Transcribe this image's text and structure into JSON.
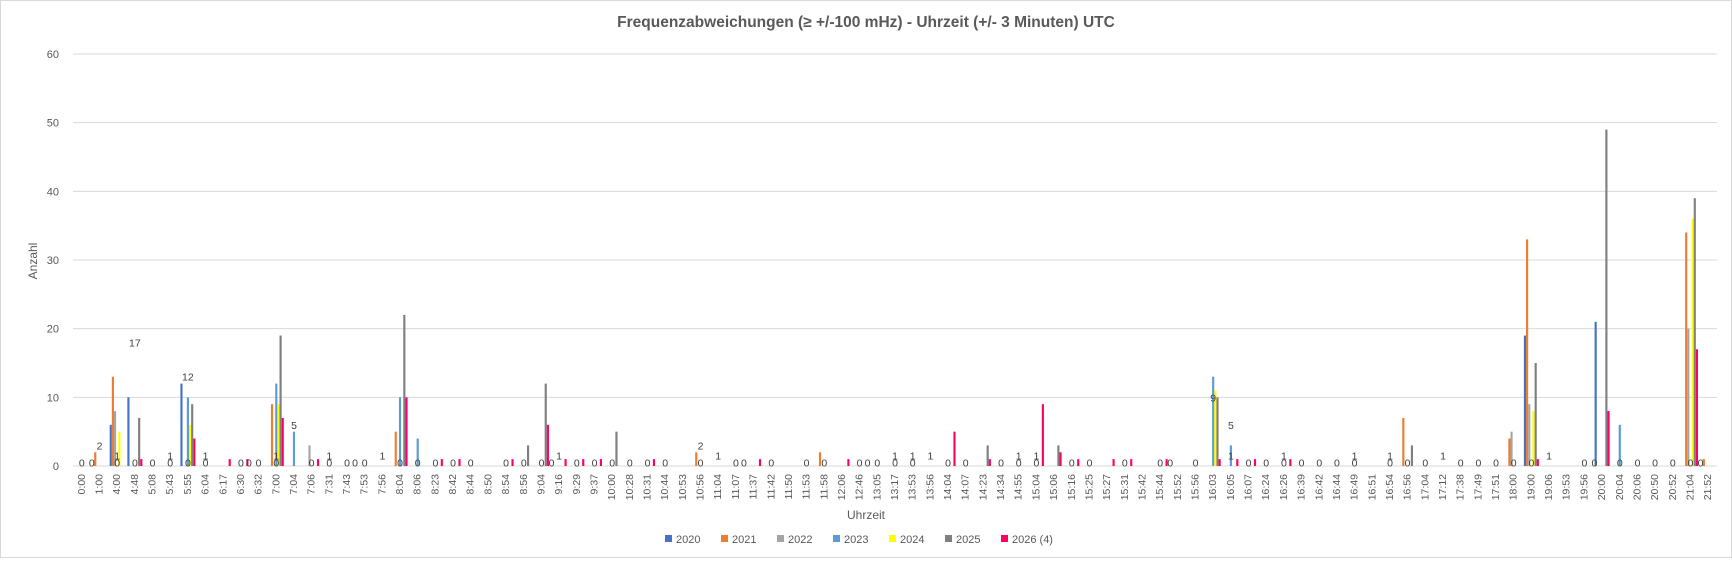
{
  "chart_data": {
    "type": "bar",
    "title": "Frequenzabweichungen (≥ +/-100 mHz) - Uhrzeit (+/- 3  Minuten) UTC",
    "xlabel": "Uhrzeit",
    "ylabel": "Anzahl",
    "ylim": [
      0,
      60
    ],
    "yticks": [
      "0",
      "10",
      "20",
      "30",
      "40",
      "50",
      "60"
    ],
    "grid": true,
    "legend_position": "bottom",
    "colors": [
      "#4472C4",
      "#ED7D31",
      "#A5A5A5",
      "#5B9BD5",
      "#FFFF00",
      "#7F7F7F",
      "#FF0066"
    ],
    "categories": [
      "0:00",
      "1:00",
      "4:00",
      "4:48",
      "5:08",
      "5:43",
      "5:55",
      "6:04",
      "6:17",
      "6:30",
      "6:32",
      "7:00",
      "7:04",
      "7:06",
      "7:31",
      "7:43",
      "7:53",
      "7:56",
      "8:04",
      "8:06",
      "8:23",
      "8:42",
      "8:44",
      "8:50",
      "8:54",
      "8:56",
      "9:04",
      "9:16",
      "9:29",
      "9:37",
      "10:00",
      "10:28",
      "10:31",
      "10:44",
      "10:53",
      "10:56",
      "11:04",
      "11:07",
      "11:37",
      "11:42",
      "11:50",
      "11:53",
      "11:58",
      "12:06",
      "12:46",
      "13:05",
      "13:17",
      "13:53",
      "13:56",
      "14:04",
      "14:07",
      "14:23",
      "14:34",
      "14:55",
      "15:04",
      "15:06",
      "15:16",
      "15:25",
      "15:27",
      "15:31",
      "15:42",
      "15:44",
      "15:52",
      "15:56",
      "16:03",
      "16:05",
      "16:07",
      "16:24",
      "16:26",
      "16:39",
      "16:42",
      "16:44",
      "16:49",
      "16:51",
      "16:54",
      "16:56",
      "17:04",
      "17:12",
      "17:38",
      "17:49",
      "17:51",
      "18:00",
      "19:00",
      "19:06",
      "19:53",
      "19:56",
      "20:00",
      "20:04",
      "20:06",
      "20:50",
      "20:52",
      "21:04",
      "21:52"
    ],
    "series": [
      {
        "name": "2020",
        "values": [
          0,
          0,
          6,
          10,
          0,
          0,
          12,
          0,
          0,
          0,
          0,
          0,
          0,
          0,
          0,
          0,
          0,
          0,
          0,
          0,
          0,
          0,
          0,
          0,
          0,
          0,
          0,
          0,
          0,
          0,
          0,
          0,
          0,
          0,
          0,
          0,
          0,
          0,
          0,
          0,
          0,
          0,
          0,
          0,
          0,
          0,
          0,
          0,
          0,
          0,
          0,
          0,
          0,
          0,
          0,
          0,
          0,
          0,
          0,
          0,
          0,
          0,
          0,
          0,
          0,
          0,
          0,
          0,
          0,
          0,
          0,
          0,
          0,
          0,
          0,
          0,
          0,
          0,
          0,
          0,
          0,
          0,
          19,
          0,
          0,
          0,
          21,
          0,
          0,
          0,
          0,
          0,
          0
        ]
      },
      {
        "name": "2021",
        "values": [
          0,
          2,
          13,
          0,
          0,
          0,
          0,
          0,
          0,
          0,
          0,
          9,
          0,
          0,
          0,
          0,
          0,
          0,
          5,
          0,
          0,
          0,
          0,
          0,
          0,
          0,
          0,
          0,
          0,
          0,
          0,
          0,
          0,
          0,
          0,
          2,
          0,
          0,
          0,
          0,
          0,
          0,
          2,
          0,
          0,
          0,
          0,
          0,
          0,
          0,
          0,
          0,
          0,
          0,
          0,
          0,
          0,
          0,
          0,
          0,
          0,
          0,
          0,
          0,
          0,
          0,
          0,
          0,
          0,
          0,
          0,
          0,
          0,
          0,
          0,
          7,
          0,
          0,
          0,
          0,
          0,
          4,
          33,
          0,
          0,
          0,
          0,
          0,
          0,
          0,
          0,
          34,
          1
        ]
      },
      {
        "name": "2022",
        "values": [
          0,
          0,
          8,
          0,
          0,
          0,
          0,
          0,
          0,
          0,
          0,
          0,
          0,
          3,
          0,
          0,
          0,
          0,
          0,
          0,
          0,
          0,
          0,
          0,
          0,
          0,
          0,
          0,
          0,
          0,
          0,
          0,
          0,
          0,
          0,
          0,
          0,
          0,
          0,
          0,
          0,
          0,
          0,
          0,
          0,
          0,
          0,
          0,
          0,
          0,
          0,
          0,
          0,
          0,
          0,
          0,
          0,
          0,
          0,
          0,
          0,
          0,
          0,
          0,
          0,
          0,
          0,
          0,
          0,
          0,
          0,
          0,
          0,
          0,
          0,
          0,
          0,
          0,
          0,
          0,
          0,
          5,
          9,
          0,
          0,
          0,
          0,
          0,
          0,
          0,
          0,
          20,
          0
        ]
      },
      {
        "name": "2023",
        "values": [
          0,
          0,
          0,
          0,
          0,
          0,
          10,
          0,
          0,
          0,
          0,
          12,
          5,
          0,
          0,
          0,
          0,
          0,
          10,
          4,
          0,
          0,
          0,
          0,
          0,
          0,
          0,
          0,
          0,
          0,
          0,
          0,
          0,
          0,
          0,
          0,
          0,
          0,
          0,
          0,
          0,
          0,
          0,
          0,
          0,
          0,
          0,
          0,
          0,
          0,
          0,
          0,
          0,
          0,
          0,
          0,
          0,
          0,
          0,
          0,
          0,
          0,
          0,
          0,
          13,
          3,
          0,
          0,
          0,
          0,
          0,
          0,
          0,
          0,
          0,
          0,
          0,
          0,
          0,
          0,
          0,
          0,
          0,
          0,
          0,
          0,
          0,
          6,
          0,
          0,
          0,
          0,
          0
        ]
      },
      {
        "name": "2024",
        "values": [
          0,
          0,
          5,
          0,
          0,
          0,
          6,
          0,
          0,
          0,
          0,
          9,
          0,
          0,
          0,
          0,
          0,
          0,
          0,
          0,
          0,
          0,
          0,
          0,
          0,
          0,
          0,
          0,
          0,
          0,
          0,
          0,
          0,
          0,
          0,
          0,
          0,
          0,
          0,
          0,
          0,
          0,
          0,
          0,
          0,
          0,
          0,
          0,
          0,
          0,
          0,
          0,
          0,
          0,
          0,
          0,
          0,
          0,
          0,
          0,
          0,
          0,
          0,
          0,
          11,
          0,
          0,
          0,
          0,
          0,
          0,
          0,
          0,
          0,
          0,
          0,
          0,
          0,
          0,
          0,
          0,
          0,
          8,
          0,
          0,
          0,
          0,
          0,
          0,
          0,
          0,
          36,
          0
        ]
      },
      {
        "name": "2025",
        "values": [
          0,
          0,
          0,
          7,
          0,
          0,
          9,
          0,
          0,
          0,
          0,
          19,
          0,
          0,
          0,
          0,
          0,
          0,
          22,
          0,
          0,
          0,
          0,
          0,
          0,
          3,
          12,
          0,
          0,
          0,
          5,
          0,
          0,
          0,
          0,
          0,
          0,
          0,
          0,
          0,
          0,
          0,
          0,
          0,
          0,
          0,
          0,
          0,
          0,
          0,
          0,
          3,
          0,
          0,
          0,
          3,
          0,
          0,
          0,
          0,
          0,
          0,
          0,
          0,
          10,
          0,
          0,
          0,
          0,
          0,
          0,
          0,
          0,
          0,
          0,
          3,
          0,
          0,
          0,
          0,
          0,
          0,
          15,
          0,
          0,
          0,
          49,
          0,
          0,
          0,
          0,
          39,
          0
        ]
      },
      {
        "name": "2026 (4)",
        "values": [
          0,
          0,
          0,
          1,
          0,
          0,
          4,
          0,
          1,
          1,
          0,
          7,
          0,
          1,
          0,
          0,
          0,
          0,
          10,
          0,
          1,
          1,
          0,
          0,
          1,
          0,
          6,
          1,
          1,
          1,
          0,
          0,
          1,
          0,
          0,
          0,
          0,
          0,
          1,
          0,
          0,
          0,
          0,
          1,
          0,
          0,
          0,
          0,
          0,
          5,
          0,
          1,
          0,
          0,
          9,
          2,
          1,
          0,
          1,
          1,
          0,
          1,
          0,
          0,
          1,
          1,
          1,
          0,
          1,
          0,
          0,
          0,
          0,
          0,
          0,
          0,
          0,
          0,
          0,
          0,
          0,
          0,
          1,
          0,
          0,
          0,
          8,
          0,
          0,
          0,
          0,
          17,
          0
        ]
      }
    ],
    "annotations": [
      {
        "text": "17",
        "category": "4:48",
        "y": 18
      },
      {
        "text": "12",
        "category": "5:55",
        "y": 13
      },
      {
        "text": "5",
        "category": "7:04",
        "y": 6
      },
      {
        "text": "9",
        "category": "16:03",
        "y": 10
      },
      {
        "text": "5",
        "category": "16:05",
        "y": 6
      },
      {
        "text": "2",
        "category": "1:00",
        "y": 3
      },
      {
        "text": "2",
        "category": "10:56",
        "y": 3
      },
      {
        "text": "1",
        "category": "4:00",
        "y": 1.5
      },
      {
        "text": "1",
        "category": "5:43",
        "y": 1.5
      },
      {
        "text": "1",
        "category": "6:04",
        "y": 1.5
      },
      {
        "text": "1",
        "category": "7:00",
        "y": 1.5
      },
      {
        "text": "1",
        "category": "7:31",
        "y": 1.5
      },
      {
        "text": "1",
        "category": "7:56",
        "y": 1.5
      },
      {
        "text": "1",
        "category": "9:16",
        "y": 1.5
      },
      {
        "text": "1",
        "category": "11:04",
        "y": 1.5
      },
      {
        "text": "1",
        "category": "13:17",
        "y": 1.5
      },
      {
        "text": "1",
        "category": "13:53",
        "y": 1.5
      },
      {
        "text": "1",
        "category": "13:56",
        "y": 1.5
      },
      {
        "text": "1",
        "category": "14:55",
        "y": 1.5
      },
      {
        "text": "1",
        "category": "15:04",
        "y": 1.5
      },
      {
        "text": "1",
        "category": "16:05",
        "y": 1.5
      },
      {
        "text": "1",
        "category": "16:26",
        "y": 1.5
      },
      {
        "text": "1",
        "category": "16:49",
        "y": 1.5
      },
      {
        "text": "1",
        "category": "16:54",
        "y": 1.5
      },
      {
        "text": "1",
        "category": "17:12",
        "y": 1.5
      },
      {
        "text": "1",
        "category": "19:06",
        "y": 1.5
      },
      {
        "text": "0",
        "category": "0:00",
        "y": 0.5
      },
      {
        "text": "0",
        "category": "0:00",
        "y": 0.5,
        "offset": 10
      },
      {
        "text": "0",
        "category": "4:00",
        "y": 0.5
      },
      {
        "text": "0",
        "category": "4:48",
        "y": 0.5
      },
      {
        "text": "0",
        "category": "5:08",
        "y": 0.5
      },
      {
        "text": "0",
        "category": "5:43",
        "y": 0.5
      },
      {
        "text": "0",
        "category": "5:55",
        "y": 0.5
      },
      {
        "text": "0",
        "category": "6:04",
        "y": 0.5
      },
      {
        "text": "0",
        "category": "6:30",
        "y": 0.5
      },
      {
        "text": "0",
        "category": "6:30",
        "y": 0.5,
        "offset": 8
      },
      {
        "text": "0",
        "category": "6:32",
        "y": 0.5
      },
      {
        "text": "0",
        "category": "7:00",
        "y": 0.5
      },
      {
        "text": "0",
        "category": "7:06",
        "y": 0.5
      },
      {
        "text": "0",
        "category": "7:31",
        "y": 0.5
      },
      {
        "text": "0",
        "category": "7:43",
        "y": 0.5
      },
      {
        "text": "0",
        "category": "7:43",
        "y": 0.5,
        "offset": 8
      },
      {
        "text": "0",
        "category": "7:53",
        "y": 0.5
      },
      {
        "text": "0",
        "category": "8:04",
        "y": 0.5
      },
      {
        "text": "0",
        "category": "8:06",
        "y": 0.5
      },
      {
        "text": "0",
        "category": "8:23",
        "y": 0.5
      },
      {
        "text": "0",
        "category": "8:42",
        "y": 0.5
      },
      {
        "text": "0",
        "category": "8:44",
        "y": 0.5
      },
      {
        "text": "0",
        "category": "8:54",
        "y": 0.5
      },
      {
        "text": "0",
        "category": "8:56",
        "y": 0.5
      },
      {
        "text": "0",
        "category": "9:04",
        "y": 0.5
      },
      {
        "text": "0",
        "category": "9:04",
        "y": 0.5,
        "offset": 10
      },
      {
        "text": "0",
        "category": "9:29",
        "y": 0.5
      },
      {
        "text": "0",
        "category": "9:37",
        "y": 0.5
      },
      {
        "text": "0",
        "category": "10:00",
        "y": 0.5
      },
      {
        "text": "0",
        "category": "10:28",
        "y": 0.5
      },
      {
        "text": "0",
        "category": "10:31",
        "y": 0.5
      },
      {
        "text": "0",
        "category": "10:44",
        "y": 0.5
      },
      {
        "text": "0",
        "category": "10:56",
        "y": 0.5
      },
      {
        "text": "0",
        "category": "11:07",
        "y": 0.5
      },
      {
        "text": "0",
        "category": "11:07",
        "y": 0.5,
        "offset": 8
      },
      {
        "text": "0",
        "category": "11:42",
        "y": 0.5
      },
      {
        "text": "0",
        "category": "11:53",
        "y": 0.5
      },
      {
        "text": "0",
        "category": "11:58",
        "y": 0.5
      },
      {
        "text": "0",
        "category": "12:46",
        "y": 0.5
      },
      {
        "text": "0",
        "category": "12:46",
        "y": 0.5,
        "offset": 8
      },
      {
        "text": "0",
        "category": "13:05",
        "y": 0.5
      },
      {
        "text": "0",
        "category": "13:17",
        "y": 0.5
      },
      {
        "text": "0",
        "category": "13:53",
        "y": 0.5
      },
      {
        "text": "0",
        "category": "14:04",
        "y": 0.5
      },
      {
        "text": "0",
        "category": "14:07",
        "y": 0.5
      },
      {
        "text": "0",
        "category": "14:34",
        "y": 0.5
      },
      {
        "text": "0",
        "category": "14:55",
        "y": 0.5
      },
      {
        "text": "0",
        "category": "15:04",
        "y": 0.5
      },
      {
        "text": "0",
        "category": "15:16",
        "y": 0.5
      },
      {
        "text": "0",
        "category": "15:25",
        "y": 0.5
      },
      {
        "text": "0",
        "category": "15:31",
        "y": 0.5
      },
      {
        "text": "0",
        "category": "15:44",
        "y": 0.5
      },
      {
        "text": "0",
        "category": "15:44",
        "y": 0.5,
        "offset": 10
      },
      {
        "text": "0",
        "category": "15:56",
        "y": 0.5
      },
      {
        "text": "0",
        "category": "16:07",
        "y": 0.5
      },
      {
        "text": "0",
        "category": "16:24",
        "y": 0.5
      },
      {
        "text": "0",
        "category": "16:26",
        "y": 0.5
      },
      {
        "text": "0",
        "category": "16:39",
        "y": 0.5
      },
      {
        "text": "0",
        "category": "16:42",
        "y": 0.5
      },
      {
        "text": "0",
        "category": "16:44",
        "y": 0.5
      },
      {
        "text": "0",
        "category": "16:49",
        "y": 0.5
      },
      {
        "text": "0",
        "category": "16:54",
        "y": 0.5
      },
      {
        "text": "0",
        "category": "16:56",
        "y": 0.5
      },
      {
        "text": "0",
        "category": "17:04",
        "y": 0.5
      },
      {
        "text": "0",
        "category": "17:38",
        "y": 0.5
      },
      {
        "text": "0",
        "category": "17:49",
        "y": 0.5
      },
      {
        "text": "0",
        "category": "17:51",
        "y": 0.5
      },
      {
        "text": "0",
        "category": "18:00",
        "y": 0.5
      },
      {
        "text": "0",
        "category": "19:00",
        "y": 0.5
      },
      {
        "text": "0",
        "category": "19:56",
        "y": 0.5
      },
      {
        "text": "0",
        "category": "19:56",
        "y": 0.5,
        "offset": 10
      },
      {
        "text": "0",
        "category": "20:04",
        "y": 0.5
      },
      {
        "text": "0",
        "category": "20:06",
        "y": 0.5
      },
      {
        "text": "0",
        "category": "20:50",
        "y": 0.5
      },
      {
        "text": "0",
        "category": "20:52",
        "y": 0.5
      },
      {
        "text": "0",
        "category": "21:04",
        "y": 0.5
      },
      {
        "text": "0",
        "category": "21:04",
        "y": 0.5,
        "offset": 10
      }
    ]
  }
}
